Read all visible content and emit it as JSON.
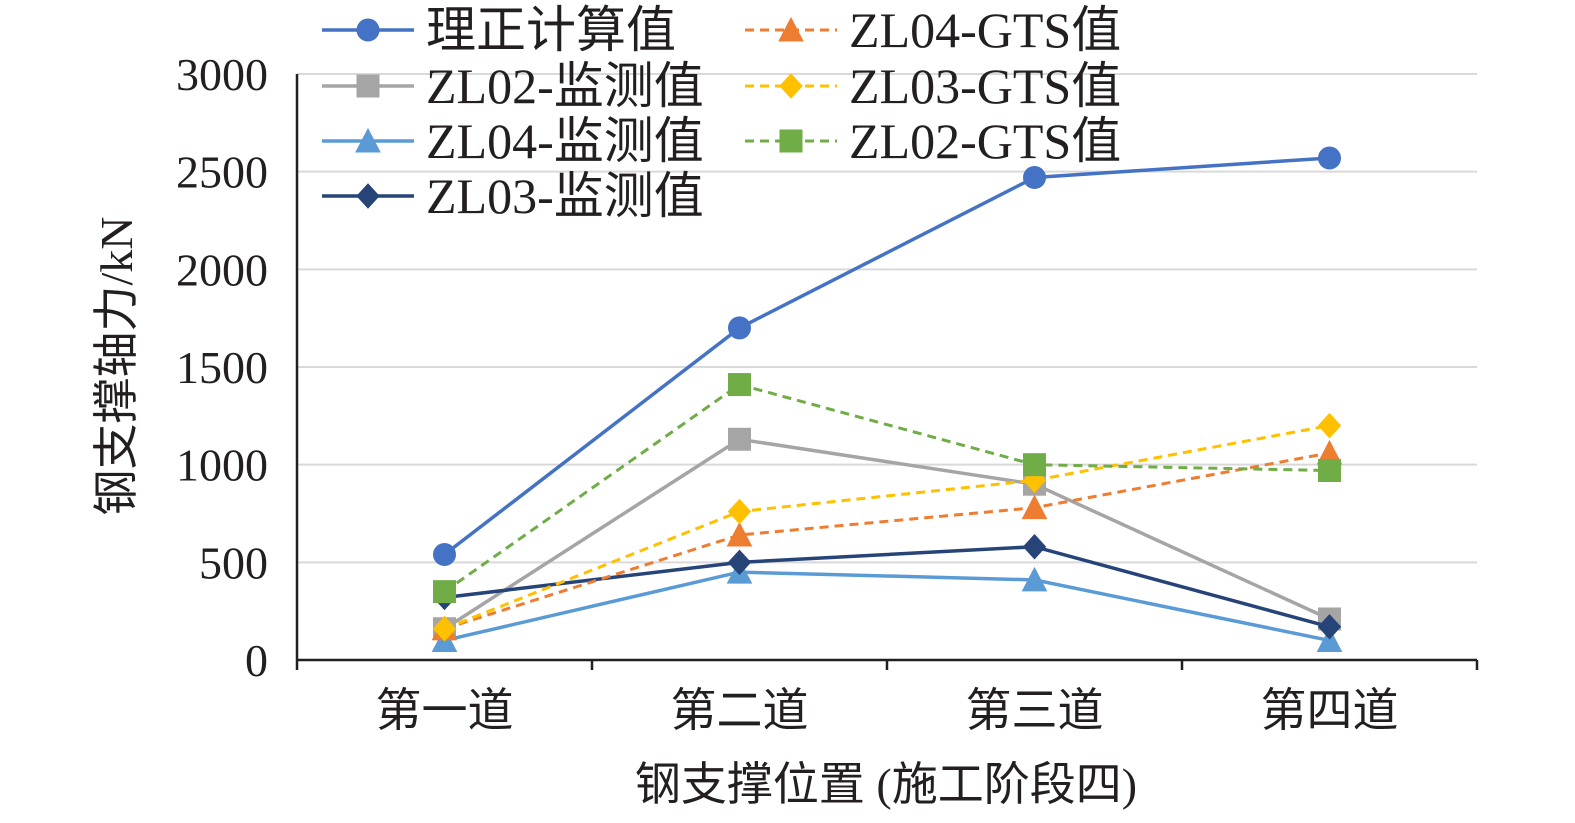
{
  "chart_data": {
    "type": "line",
    "title": "",
    "xlabel": "钢支撑位置 (施工阶段四)",
    "ylabel": "钢支撑轴力/kN",
    "categories": [
      "第一道",
      "第二道",
      "第三道",
      "第四道"
    ],
    "ylim": [
      0,
      3000
    ],
    "yticks": [
      0,
      500,
      1000,
      1500,
      2000,
      2500,
      3000
    ],
    "grid": "horizontal",
    "legend_position": "top",
    "series": [
      {
        "name": "理正计算值",
        "values": [
          540,
          1700,
          2470,
          2570
        ],
        "color": "#4472c4",
        "marker": "circle",
        "dash": false
      },
      {
        "name": "ZL02-监测值",
        "values": [
          160,
          1130,
          900,
          210
        ],
        "color": "#a5a5a5",
        "marker": "square",
        "dash": false
      },
      {
        "name": "ZL04-监测值",
        "values": [
          100,
          450,
          410,
          100
        ],
        "color": "#5b9bd5",
        "marker": "triangle",
        "dash": false
      },
      {
        "name": "ZL03-监测值",
        "values": [
          320,
          500,
          580,
          170
        ],
        "color": "#264478",
        "marker": "diamond",
        "dash": false
      },
      {
        "name": "ZL04-GTS值",
        "values": [
          160,
          640,
          780,
          1060
        ],
        "color": "#ed7d31",
        "marker": "triangle",
        "dash": true
      },
      {
        "name": "ZL03-GTS值",
        "values": [
          160,
          760,
          920,
          1200
        ],
        "color": "#ffc000",
        "marker": "diamond",
        "dash": true
      },
      {
        "name": "ZL02-GTS值",
        "values": [
          350,
          1410,
          1000,
          970
        ],
        "color": "#70ad47",
        "marker": "square",
        "dash": true
      }
    ]
  }
}
